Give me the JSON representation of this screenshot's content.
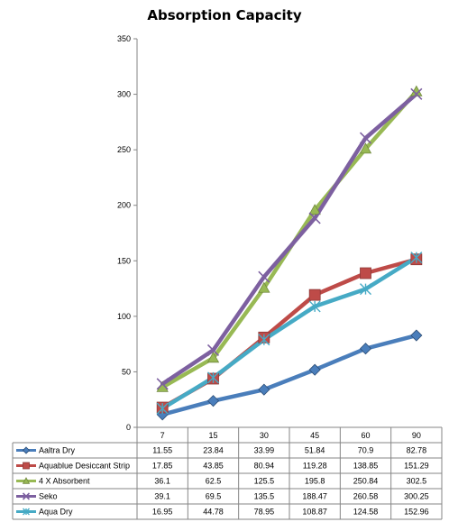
{
  "chart_data": {
    "type": "line",
    "title": "Absorption Capacity",
    "categories": [
      "7",
      "15",
      "30",
      "45",
      "60",
      "90"
    ],
    "ylim": [
      0,
      350
    ],
    "yticks": [
      0,
      50,
      100,
      150,
      200,
      250,
      300,
      350
    ],
    "grid": false,
    "legend": "data-table",
    "series": [
      {
        "name": "Aaltra Dry",
        "values": [
          11.55,
          23.84,
          33.99,
          51.84,
          70.9,
          82.78
        ],
        "color": "#4a7ebb",
        "marker": "diamond",
        "labels": [
          "11.55",
          "23.84",
          "33.99",
          "51.84",
          "70.9",
          "82.78"
        ]
      },
      {
        "name": "Aquablue Desiccant Strip",
        "values": [
          17.85,
          43.85,
          80.94,
          119.28,
          138.85,
          151.29
        ],
        "color": "#be4b48",
        "marker": "square",
        "labels": [
          "17.85",
          "43.85",
          "80.94",
          "119.28",
          "138.85",
          "151.29"
        ]
      },
      {
        "name": "4 X Absorbent",
        "values": [
          36.1,
          62.5,
          125.5,
          195.8,
          250.84,
          302.5
        ],
        "color": "#98b954",
        "marker": "triangle",
        "labels": [
          "36.1",
          "62.5",
          "125.5",
          "195.8",
          "250.84",
          "302.5"
        ]
      },
      {
        "name": "Seko",
        "values": [
          39.1,
          69.5,
          135.5,
          188.47,
          260.58,
          300.25
        ],
        "color": "#7d60a0",
        "marker": "x",
        "labels": [
          "39.1",
          "69.5",
          "135.5",
          "188.47",
          "260.58",
          "300.25"
        ]
      },
      {
        "name": "Aqua Dry",
        "values": [
          16.95,
          44.78,
          78.95,
          108.87,
          124.58,
          152.96
        ],
        "color": "#46aac5",
        "marker": "star",
        "labels": [
          "16.95",
          "44.78",
          "78.95",
          "108.87",
          "124.58",
          "152.96"
        ]
      }
    ]
  }
}
